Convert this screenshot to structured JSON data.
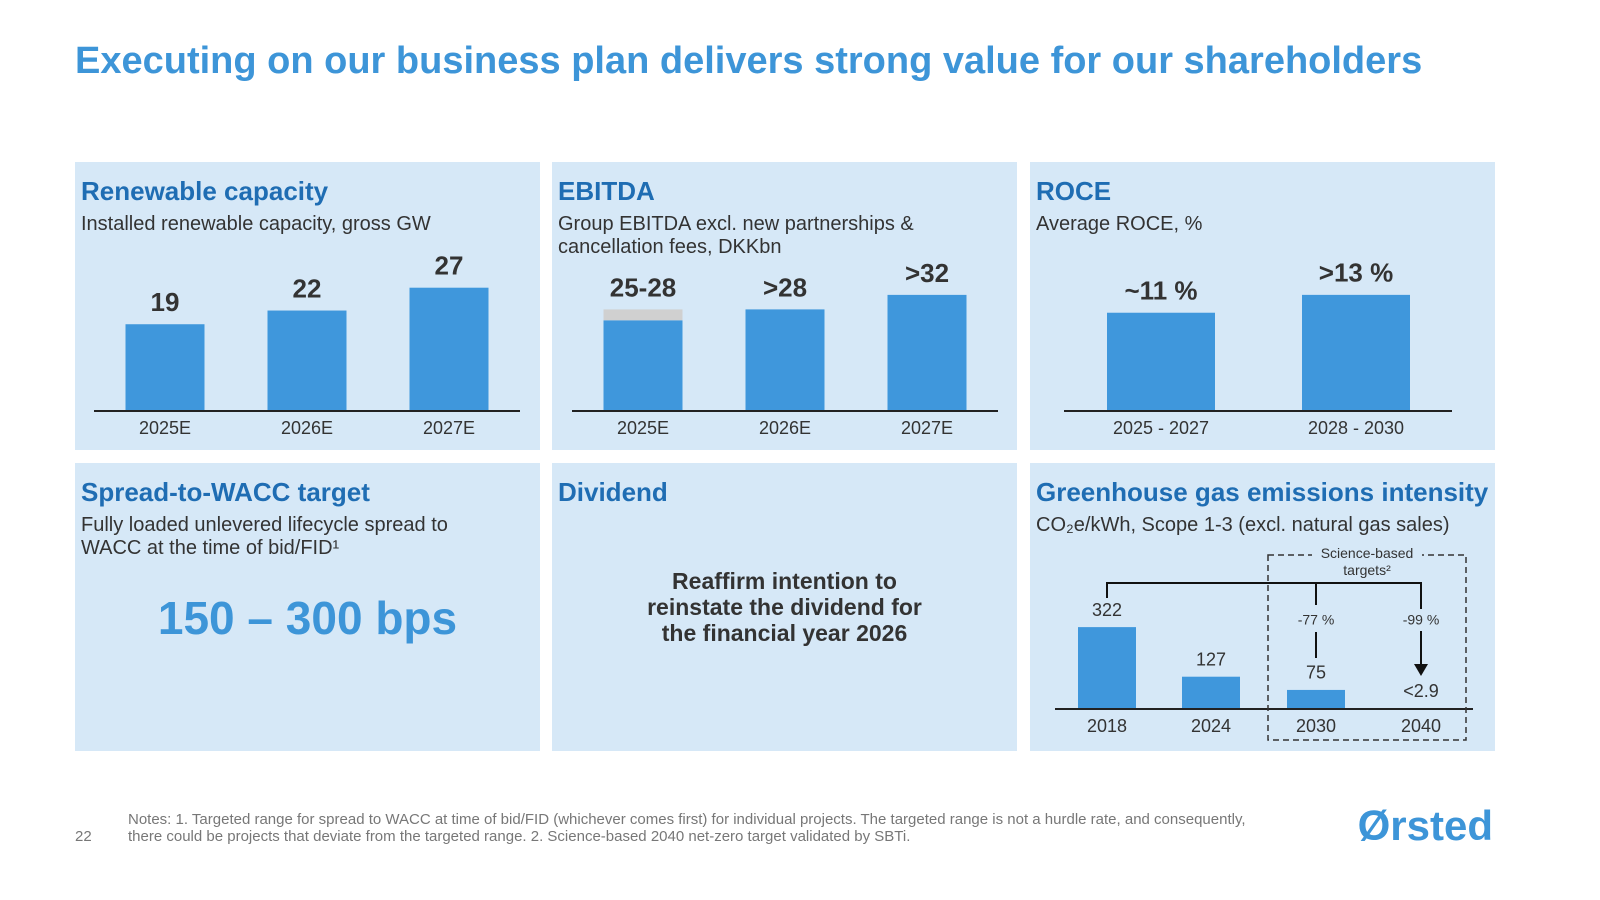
{
  "title": "Executing on our business plan delivers strong value for our shareholders",
  "chart_data": [
    {
      "type": "bar",
      "title": "Renewable capacity",
      "subtitle": "Installed renewable capacity, gross GW",
      "categories": [
        "2025E",
        "2026E",
        "2027E"
      ],
      "values": [
        19,
        22,
        27
      ],
      "ylim": [
        0,
        30
      ],
      "color": "#3f97dc"
    },
    {
      "type": "bar",
      "title": "EBITDA",
      "subtitle": "Group EBITDA excl. new partnerships & cancellation fees, DKKbn",
      "categories": [
        "2025E",
        "2026E",
        "2027E"
      ],
      "values": [
        25,
        28,
        32
      ],
      "range_tops": [
        28,
        null,
        null
      ],
      "range_color": "#d0d0d0",
      "value_labels": [
        "25-28",
        ">28",
        ">32"
      ],
      "ylim": [
        0,
        35
      ],
      "color": "#3f97dc"
    },
    {
      "type": "bar",
      "title": "ROCE",
      "subtitle": "Average ROCE, %",
      "categories": [
        "2025 - 2027",
        "2028 - 2030"
      ],
      "values": [
        11,
        13
      ],
      "value_labels": [
        "~11 %",
        ">13 %"
      ],
      "ylim": [
        0,
        15
      ],
      "color": "#3f97dc"
    },
    {
      "type": "bar",
      "title": "Greenhouse gas emissions intensity",
      "subtitle": "CO₂e/kWh, Scope 1-3 (excl. natural gas sales)",
      "categories": [
        "2018",
        "2024",
        "2030",
        "2040"
      ],
      "values": [
        322,
        127,
        75,
        2.9
      ],
      "value_labels": [
        "322",
        "127",
        "75",
        "<2.9"
      ],
      "annotations": {
        "targets_label": "Science-based targets²",
        "changes": [
          "-77 %",
          "-99 %"
        ]
      },
      "ylim": [
        0,
        350
      ],
      "color": "#3f97dc"
    }
  ],
  "panels": [
    {
      "title": "Spread-to-WACC target",
      "subtitle": "Fully loaded unlevered lifecycle spread to WACC at the time of bid/FID¹",
      "highlight": "150 – 300 bps"
    },
    {
      "title": "Dividend",
      "body": "Reaffirm intention to reinstate the dividend for the financial year 2026"
    }
  ],
  "notes": "Notes: 1. Targeted range for spread to WACC at time of bid/FID (whichever comes first) for individual projects. The targeted range is not a hurdle rate, and consequently, there could be projects that deviate from the targeted range. 2. Science-based 2040 net-zero target validated by SBTi.",
  "page_number": "22",
  "logo": "Ørsted"
}
